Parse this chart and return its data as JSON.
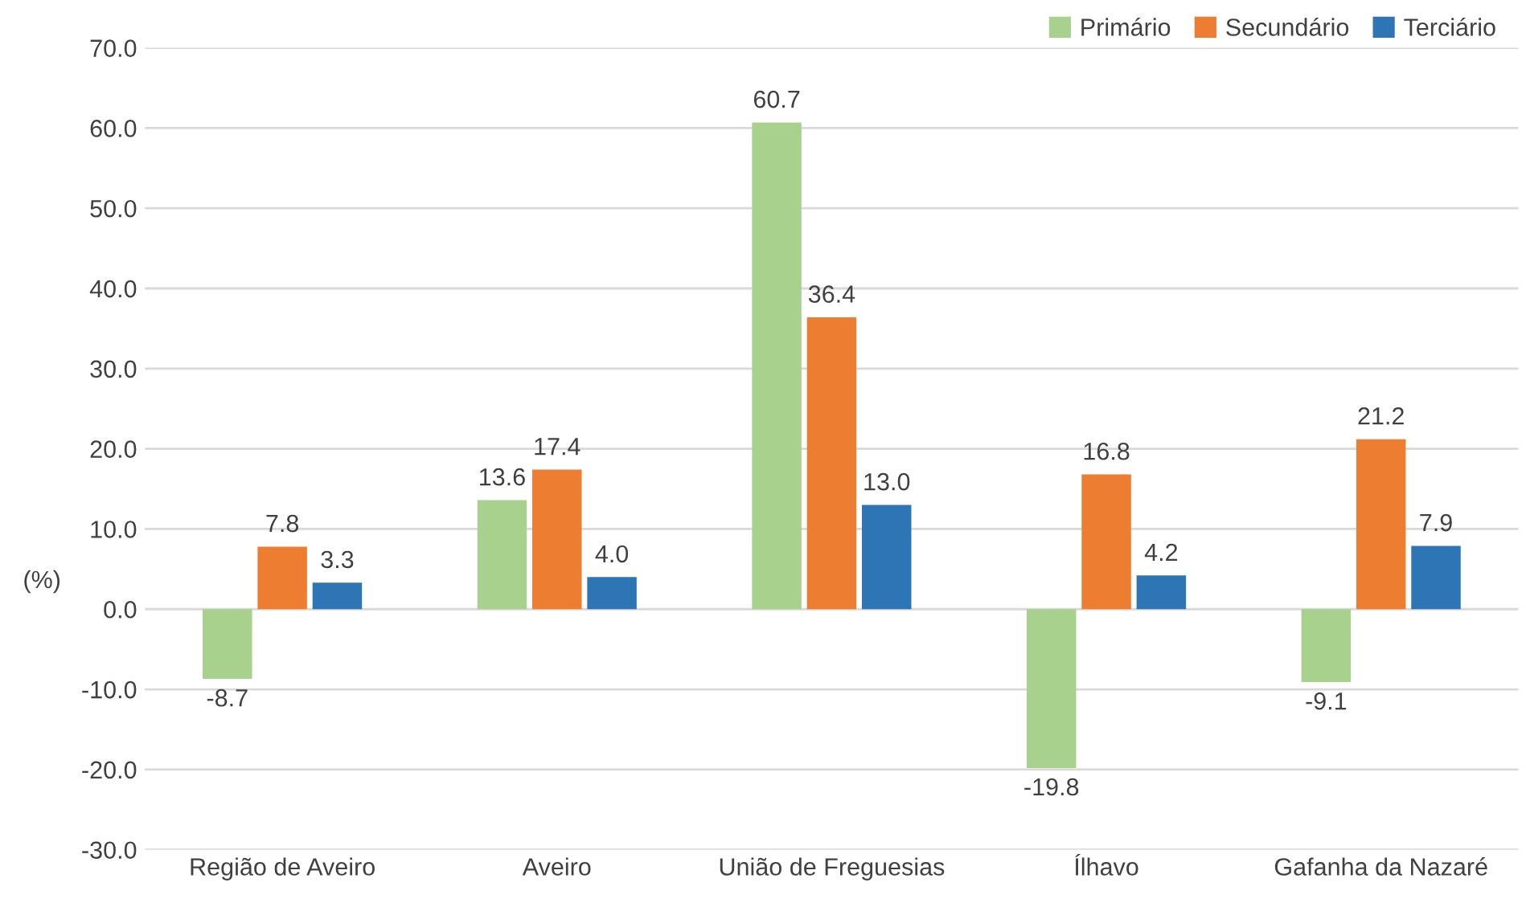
{
  "chart_data": {
    "type": "bar",
    "ylabel": "(%)",
    "categories": [
      "Região de Aveiro",
      "Aveiro",
      "União de Freguesias",
      "Ílhavo",
      "Gafanha da Nazaré"
    ],
    "series": [
      {
        "name": "Primário",
        "color": "#a9d18e",
        "values": [
          -8.7,
          13.6,
          60.7,
          -19.8,
          -9.1
        ],
        "value_labels": [
          "-8.7",
          "13.6",
          "60.7",
          "-19.8",
          "-9.1"
        ]
      },
      {
        "name": "Secundário",
        "color": "#ed7d31",
        "values": [
          7.8,
          17.4,
          36.4,
          16.8,
          21.2
        ],
        "value_labels": [
          "7.8",
          "17.4",
          "36.4",
          "16.8",
          "21.2"
        ]
      },
      {
        "name": "Terciário",
        "color": "#2e75b6",
        "values": [
          3.3,
          4.0,
          13.0,
          4.2,
          7.9
        ],
        "value_labels": [
          "3.3",
          "4.0",
          "13.0",
          "4.2",
          "7.9"
        ]
      }
    ],
    "ylim": [
      -30,
      70
    ],
    "yticks": [
      {
        "value": -30,
        "label": "-30.0"
      },
      {
        "value": -20,
        "label": "-20.0"
      },
      {
        "value": -10,
        "label": "-10.0"
      },
      {
        "value": 0,
        "label": "0.0"
      },
      {
        "value": 10,
        "label": "10.0"
      },
      {
        "value": 20,
        "label": "20.0"
      },
      {
        "value": 30,
        "label": "30.0"
      },
      {
        "value": 40,
        "label": "40.0"
      },
      {
        "value": 50,
        "label": "50.0"
      },
      {
        "value": 60,
        "label": "60.0"
      },
      {
        "value": 70,
        "label": "70.0"
      }
    ],
    "grid": "y",
    "legend": "top right"
  }
}
